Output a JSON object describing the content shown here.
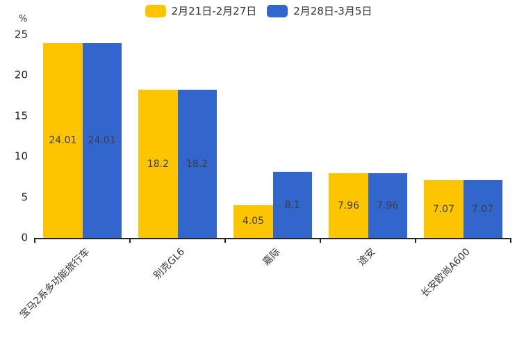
{
  "page": {
    "background": "#ffffff"
  },
  "legend": [
    {
      "label": "2月21日-2月27日",
      "color": "#FDC500"
    },
    {
      "label": "2月28日-3月5日",
      "color": "#3366CC"
    }
  ],
  "chart_data": {
    "type": "bar",
    "title": "",
    "ylabel": "%",
    "xlabel": "",
    "categories": [
      "宝马2系多功能旅行车",
      "别克GL6",
      "嘉际",
      "途安",
      "长安欧尚A600"
    ],
    "series": [
      {
        "name": "2月21日-2月27日",
        "color": "#FDC500",
        "values": [
          24.01,
          18.2,
          4.05,
          7.96,
          7.07
        ]
      },
      {
        "name": "2月28日-3月5日",
        "color": "#3366CC",
        "values": [
          24.01,
          18.2,
          8.1,
          7.96,
          7.07
        ]
      }
    ],
    "yticks": [
      0,
      5,
      10,
      15,
      20,
      25
    ],
    "ylim": [
      0,
      25
    ],
    "legend_position": "top-center",
    "grid": false,
    "value_labels": true,
    "value_label_color": "#3d3d3d",
    "axis_color": "#222222",
    "x_label_rotation_deg": 45
  }
}
